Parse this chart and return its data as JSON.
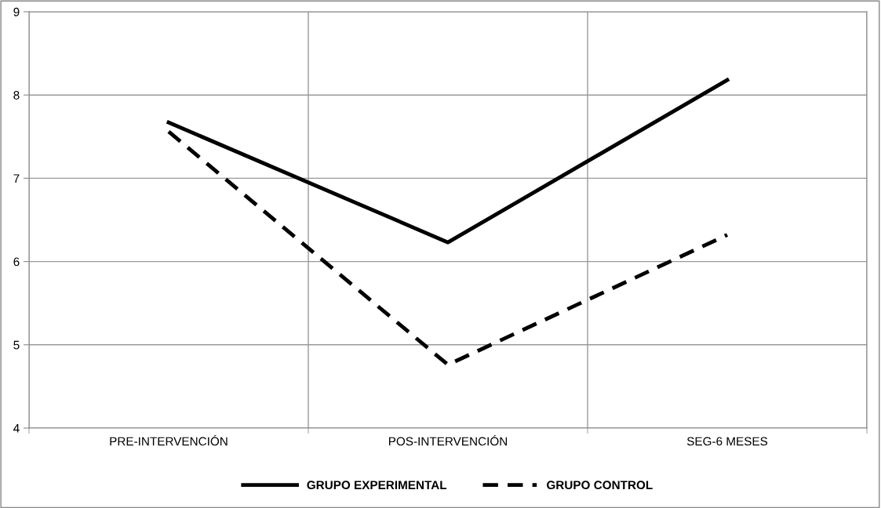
{
  "chart_data": {
    "type": "line",
    "categories": [
      "PRE-INTERVENCIÓN",
      "POS-INTERVENCIÓN",
      "SEG-6 MESES"
    ],
    "series": [
      {
        "name": "GRUPO EXPERIMENTAL",
        "color": "#000000",
        "line_style": "solid",
        "values": [
          7.67,
          6.23,
          8.18
        ]
      },
      {
        "name": "GRUPO CONTROL",
        "color": "#000000",
        "line_style": "dashed",
        "values": [
          7.56,
          4.76,
          6.32
        ]
      }
    ],
    "ylim": [
      4,
      9
    ],
    "yticks": [
      4,
      5,
      6,
      7,
      8,
      9
    ],
    "grid": true,
    "legend": "bottom",
    "marker": "none"
  }
}
